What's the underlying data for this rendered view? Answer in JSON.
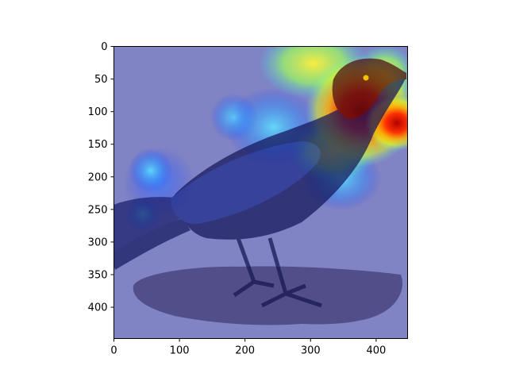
{
  "chart_data": {
    "type": "heatmap",
    "description_image": "crow perched on ground with attention heatmap overlay",
    "xlim": [
      0,
      448
    ],
    "ylim": [
      448,
      0
    ],
    "x_ticks": [
      0,
      100,
      200,
      300,
      400
    ],
    "y_ticks": [
      0,
      50,
      100,
      150,
      200,
      250,
      300,
      350,
      400
    ],
    "x_tick_labels": [
      "0",
      "100",
      "200",
      "300",
      "400"
    ],
    "y_tick_labels": [
      "0",
      "50",
      "100",
      "150",
      "200",
      "250",
      "300",
      "350",
      "400"
    ],
    "colormap": "jet",
    "hotspots": [
      {
        "x": 385,
        "y": 125,
        "intensity": 1.0
      },
      {
        "x": 420,
        "y": 160,
        "intensity": 0.9
      },
      {
        "x": 430,
        "y": 45,
        "intensity": 0.75
      },
      {
        "x": 360,
        "y": 70,
        "intensity": 0.6
      },
      {
        "x": 300,
        "y": 140,
        "intensity": 0.55
      },
      {
        "x": 230,
        "y": 140,
        "intensity": 0.35
      },
      {
        "x": 60,
        "y": 230,
        "intensity": 0.4
      },
      {
        "x": 45,
        "y": 275,
        "intensity": 0.35
      },
      {
        "x": 180,
        "y": 110,
        "intensity": 0.3
      },
      {
        "x": 350,
        "y": 205,
        "intensity": 0.45
      }
    ]
  }
}
